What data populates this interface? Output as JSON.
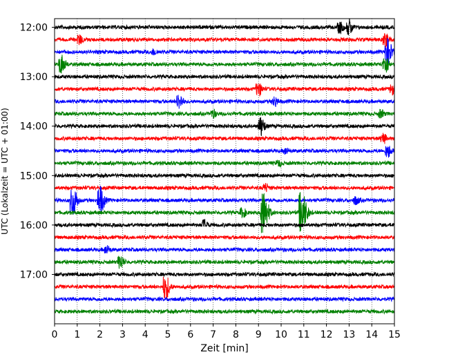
{
  "chart_data": {
    "type": "line",
    "title": "",
    "xlabel": "Zeit  [min]",
    "ylabel": "UTC (Lokalzeit = UTC + 01:00)",
    "xlim": [
      0,
      15
    ],
    "x_ticks": [
      "0",
      "1",
      "2",
      "3",
      "4",
      "5",
      "6",
      "7",
      "8",
      "9",
      "10",
      "11",
      "12",
      "13",
      "14",
      "15"
    ],
    "y_ticks": [
      "12:00",
      "13:00",
      "14:00",
      "15:00",
      "16:00",
      "17:00"
    ],
    "grid": "vertical dotted at each minute",
    "trace_interval_min": 15,
    "colors": [
      "#000000",
      "#ff0000",
      "#0000ff",
      "#008000"
    ],
    "traces": [
      {
        "start": "12:00",
        "color": "#000000",
        "events": [
          {
            "t": 12.6,
            "amp": 0.6
          },
          {
            "t": 13.0,
            "amp": 0.8
          }
        ]
      },
      {
        "start": "12:15",
        "color": "#ff0000",
        "events": [
          {
            "t": 1.1,
            "amp": 0.5
          },
          {
            "t": 14.6,
            "amp": 0.7
          }
        ]
      },
      {
        "start": "12:30",
        "color": "#0000ff",
        "events": [
          {
            "t": 14.7,
            "amp": 1.4
          },
          {
            "t": 4.4,
            "amp": 0.3
          }
        ]
      },
      {
        "start": "12:45",
        "color": "#008000",
        "events": [
          {
            "t": 0.3,
            "amp": 1.0
          },
          {
            "t": 14.6,
            "amp": 0.9
          }
        ]
      },
      {
        "start": "13:00",
        "color": "#000000",
        "events": []
      },
      {
        "start": "13:15",
        "color": "#ff0000",
        "events": [
          {
            "t": 9.0,
            "amp": 0.7
          },
          {
            "t": 14.9,
            "amp": 0.5
          }
        ]
      },
      {
        "start": "13:30",
        "color": "#0000ff",
        "events": [
          {
            "t": 5.5,
            "amp": 0.8
          },
          {
            "t": 9.7,
            "amp": 0.5
          }
        ]
      },
      {
        "start": "13:45",
        "color": "#008000",
        "events": [
          {
            "t": 7.0,
            "amp": 0.4
          },
          {
            "t": 14.4,
            "amp": 0.4
          }
        ]
      },
      {
        "start": "14:00",
        "color": "#000000",
        "events": [
          {
            "t": 9.1,
            "amp": 1.0
          }
        ]
      },
      {
        "start": "14:15",
        "color": "#ff0000",
        "events": [
          {
            "t": 14.5,
            "amp": 0.5
          }
        ]
      },
      {
        "start": "14:30",
        "color": "#0000ff",
        "events": [
          {
            "t": 14.7,
            "amp": 0.7
          },
          {
            "t": 10.2,
            "amp": 0.3
          }
        ]
      },
      {
        "start": "14:45",
        "color": "#008000",
        "events": [
          {
            "t": 9.9,
            "amp": 0.3
          }
        ]
      },
      {
        "start": "15:00",
        "color": "#000000",
        "events": []
      },
      {
        "start": "15:15",
        "color": "#ff0000",
        "events": [
          {
            "t": 9.3,
            "amp": 0.4
          }
        ]
      },
      {
        "start": "15:30",
        "color": "#0000ff",
        "events": [
          {
            "t": 0.8,
            "amp": 1.6
          },
          {
            "t": 2.0,
            "amp": 1.5
          },
          {
            "t": 13.3,
            "amp": 0.4
          }
        ]
      },
      {
        "start": "15:45",
        "color": "#008000",
        "events": [
          {
            "t": 9.2,
            "amp": 2.3
          },
          {
            "t": 10.9,
            "amp": 2.3
          },
          {
            "t": 8.3,
            "amp": 0.5
          }
        ]
      },
      {
        "start": "16:00",
        "color": "#000000",
        "events": [
          {
            "t": 6.6,
            "amp": 0.5
          }
        ]
      },
      {
        "start": "16:15",
        "color": "#ff0000",
        "events": []
      },
      {
        "start": "16:30",
        "color": "#0000ff",
        "events": [
          {
            "t": 2.3,
            "amp": 0.4
          }
        ]
      },
      {
        "start": "16:45",
        "color": "#008000",
        "events": [
          {
            "t": 2.9,
            "amp": 0.7
          }
        ]
      },
      {
        "start": "17:00",
        "color": "#000000",
        "events": []
      },
      {
        "start": "17:15",
        "color": "#ff0000",
        "events": [
          {
            "t": 4.9,
            "amp": 1.3
          }
        ]
      },
      {
        "start": "17:30",
        "color": "#0000ff",
        "events": []
      },
      {
        "start": "17:45",
        "color": "#008000",
        "events": []
      }
    ]
  }
}
